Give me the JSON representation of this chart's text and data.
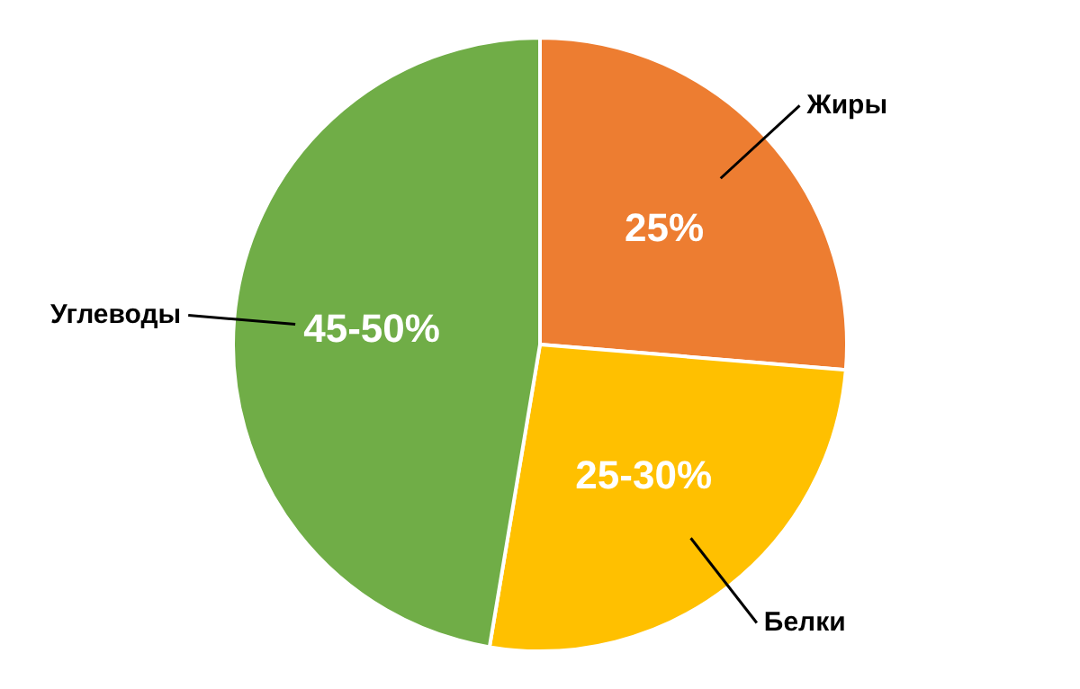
{
  "chart_data": {
    "type": "pie",
    "categories": [
      "Жиры",
      "Белки",
      "Углеводы"
    ],
    "values": [
      25,
      25,
      45
    ],
    "colors": [
      "#ed7d31",
      "#ffc000",
      "#70ad47"
    ],
    "value_labels": [
      "25%",
      "25-30%",
      "45-50%"
    ],
    "legend": false
  }
}
